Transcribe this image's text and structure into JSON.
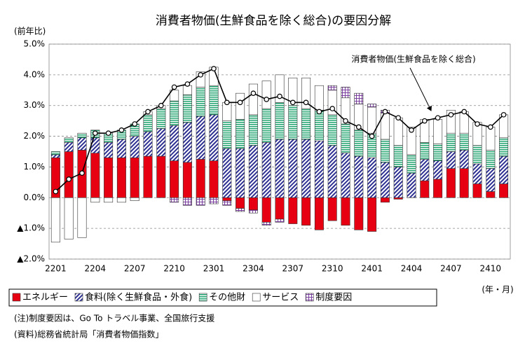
{
  "chart_data": {
    "type": "bar",
    "title": "消費者物価(生鮮食品を除く総合)の要因分解",
    "y_label": "(前年比)",
    "x_label": "(年・月)",
    "categories": [
      "2201",
      null,
      null,
      "2204",
      null,
      null,
      "2207",
      null,
      null,
      "2210",
      null,
      null,
      "2301",
      null,
      null,
      "2304",
      null,
      null,
      "2307",
      null,
      null,
      "2310",
      null,
      null,
      "2401",
      null,
      null,
      "2404",
      null,
      null,
      "2407",
      null,
      null,
      "2410",
      null
    ],
    "series": [
      {
        "name": "エネルギー",
        "color": "#e60012",
        "pattern": "solid",
        "values": [
          1.3,
          1.5,
          1.55,
          1.45,
          1.3,
          1.3,
          1.3,
          1.35,
          1.35,
          1.2,
          1.15,
          1.25,
          1.2,
          -0.1,
          -0.35,
          -0.4,
          -0.8,
          -0.7,
          -0.85,
          -0.9,
          -1.05,
          -0.75,
          -0.9,
          -1.05,
          -1.1,
          -0.15,
          -0.05,
          0,
          0.55,
          0.6,
          0.95,
          0.95,
          0.45,
          0.2,
          0.45
        ]
      },
      {
        "name": "食料(除く生鮮食品・外食)",
        "color": "#2e3192",
        "pattern": "diagonal",
        "values": [
          0.1,
          0.3,
          0.4,
          0.5,
          0.5,
          0.6,
          0.7,
          0.8,
          0.9,
          1.15,
          1.3,
          1.4,
          1.5,
          1.6,
          1.6,
          1.7,
          1.8,
          1.9,
          1.9,
          1.9,
          1.85,
          1.7,
          1.45,
          1.35,
          1.3,
          1.15,
          1.0,
          0.8,
          0.7,
          0.6,
          0.55,
          0.6,
          0.65,
          0.75,
          0.9
        ]
      },
      {
        "name": "その他財",
        "color": "#2aa876",
        "pattern": "horizontal",
        "values": [
          0.1,
          0.15,
          0.15,
          0.25,
          0.3,
          0.3,
          0.4,
          0.55,
          0.65,
          0.8,
          0.9,
          0.95,
          0.95,
          0.9,
          0.95,
          1.0,
          1.1,
          1.2,
          1.1,
          1.0,
          1.0,
          1.0,
          0.95,
          0.85,
          0.8,
          0.75,
          0.7,
          0.6,
          0.55,
          0.55,
          0.6,
          0.55,
          0.6,
          0.6,
          0.6
        ]
      },
      {
        "name": "サービス",
        "color": "#ffffff",
        "pattern": "solid",
        "values": [
          -1.45,
          -1.35,
          -1.3,
          -0.15,
          -0.15,
          -0.15,
          -0.1,
          0.1,
          0.1,
          0.35,
          0.3,
          0.5,
          0.6,
          0.6,
          0.85,
          1.0,
          0.9,
          0.9,
          0.9,
          1.0,
          0.8,
          0.8,
          0.85,
          0.85,
          0.85,
          0.85,
          0.9,
          0.9,
          0.75,
          0.8,
          0.75,
          0.7,
          0.75,
          0.75,
          0.75
        ]
      },
      {
        "name": "制度要因",
        "color": "#7b3fa0",
        "pattern": "grid",
        "values": [
          0,
          0,
          0,
          0,
          0,
          0,
          0,
          0,
          0,
          -0.15,
          -0.25,
          -0.25,
          -0.2,
          -0.15,
          -0.1,
          -0.1,
          -0.1,
          -0.1,
          0,
          0,
          0,
          0.15,
          0.35,
          0.35,
          0.1,
          0.1,
          0,
          0,
          0,
          0,
          0,
          0,
          0,
          0,
          0
        ]
      }
    ],
    "line": {
      "name": "消費者物価(生鮮食品を除く総合)",
      "color": "#000000",
      "values": [
        0.2,
        0.6,
        0.8,
        2.1,
        2.1,
        2.2,
        2.4,
        2.8,
        3.0,
        3.6,
        3.7,
        4.0,
        4.2,
        3.1,
        3.1,
        3.4,
        3.2,
        3.3,
        3.1,
        3.1,
        2.8,
        2.9,
        2.5,
        2.3,
        2.0,
        2.8,
        2.6,
        2.2,
        2.5,
        2.6,
        2.7,
        2.8,
        2.4,
        2.3,
        2.7
      ]
    },
    "ylim": [
      -2.0,
      5.0
    ],
    "yticks": [
      {
        "value": -2.0,
        "label": "▲2.0%"
      },
      {
        "value": -1.0,
        "label": "▲1.0%"
      },
      {
        "value": 0.0,
        "label": "0.0%"
      },
      {
        "value": 1.0,
        "label": "1.0%"
      },
      {
        "value": 2.0,
        "label": "2.0%"
      },
      {
        "value": 3.0,
        "label": "3.0%"
      },
      {
        "value": 4.0,
        "label": "4.0%"
      },
      {
        "value": 5.0,
        "label": "5.0%"
      }
    ],
    "grid": true,
    "notes": [
      "(注)制度要因は、Go To トラベル事業、全国旅行支援",
      "(資料)総務省統計局「消費者物価指数」"
    ]
  }
}
